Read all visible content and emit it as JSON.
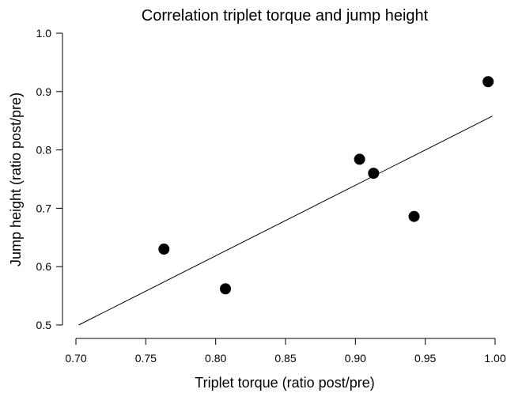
{
  "chart_data": {
    "type": "scatter",
    "title": "Correlation triplet torque and jump height",
    "xlabel": "Triplet torque (ratio post/pre)",
    "ylabel": "Jump height (ratio post/pre)",
    "xlim": [
      0.7,
      1.0
    ],
    "ylim": [
      0.5,
      1.0
    ],
    "x_ticks": [
      "0.70",
      "0.75",
      "0.80",
      "0.85",
      "0.90",
      "0.95",
      "1.00"
    ],
    "y_ticks": [
      "0.5",
      "0.6",
      "0.7",
      "0.8",
      "0.9",
      "1.0"
    ],
    "grid": false,
    "legend": "none",
    "series": [
      {
        "points": [
          {
            "x": 0.763,
            "y": 0.63
          },
          {
            "x": 0.807,
            "y": 0.562
          },
          {
            "x": 0.903,
            "y": 0.784
          },
          {
            "x": 0.913,
            "y": 0.76
          },
          {
            "x": 0.942,
            "y": 0.686
          },
          {
            "x": 0.995,
            "y": 0.917
          }
        ]
      }
    ],
    "trend_line": {
      "from": {
        "x": 0.702,
        "y": 0.5
      },
      "to": {
        "x": 0.998,
        "y": 0.858
      }
    },
    "marker_color": "#000000",
    "line_color": "#000000"
  }
}
